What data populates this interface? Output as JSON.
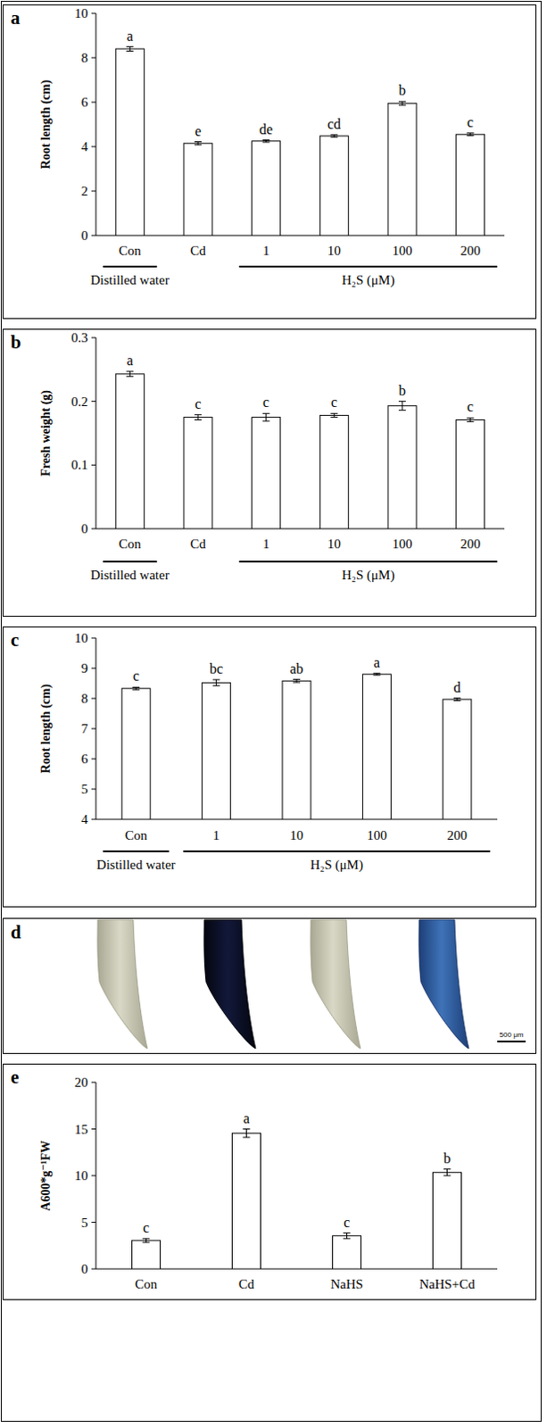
{
  "chart_data": [
    {
      "type": "bar",
      "label": "a",
      "y_label": "Root length (cm)",
      "categories": [
        "Con",
        "Cd",
        "1",
        "10",
        "100",
        "200"
      ],
      "values": [
        8.4,
        4.15,
        4.25,
        4.48,
        5.95,
        4.55
      ],
      "errors": [
        0.1,
        0.07,
        0.05,
        0.05,
        0.08,
        0.06
      ],
      "annotations": [
        "a",
        "e",
        "de",
        "cd",
        "b",
        "c"
      ],
      "groups": [
        {
          "label": "Distilled water",
          "categories": [
            "Con"
          ]
        },
        {
          "label": "H₂S (μM)",
          "categories": [
            "1",
            "10",
            "100",
            "200"
          ]
        }
      ],
      "color": "#ffffff",
      "ylim": [
        0,
        10
      ],
      "yticks": [
        0,
        2,
        4,
        6,
        8,
        10
      ],
      "grid": false
    },
    {
      "type": "bar",
      "label": "b",
      "y_label": "Fresh weight (g)",
      "categories": [
        "Con",
        "Cd",
        "1",
        "10",
        "100",
        "200"
      ],
      "values": [
        0.243,
        0.175,
        0.175,
        0.178,
        0.193,
        0.171
      ],
      "errors": [
        0.004,
        0.004,
        0.006,
        0.003,
        0.007,
        0.003
      ],
      "annotations": [
        "a",
        "c",
        "c",
        "c",
        "b",
        "c"
      ],
      "groups": [
        {
          "label": "Distilled water",
          "categories": [
            "Con"
          ]
        },
        {
          "label": "H₂S (μM)",
          "categories": [
            "1",
            "10",
            "100",
            "200"
          ]
        }
      ],
      "color": "#ffffff",
      "ylim": [
        0,
        0.3
      ],
      "yticks": [
        0,
        0.1,
        0.2,
        0.3
      ],
      "grid": false
    },
    {
      "type": "bar",
      "label": "c",
      "y_label": "Root length (cm)",
      "categories": [
        "Con",
        "1",
        "10",
        "100",
        "200"
      ],
      "values": [
        8.33,
        8.52,
        8.58,
        8.8,
        7.97
      ],
      "errors": [
        0.04,
        0.1,
        0.05,
        0.03,
        0.04
      ],
      "annotations": [
        "c",
        "bc",
        "ab",
        "a",
        "d"
      ],
      "groups": [
        {
          "label": "Distilled water",
          "categories": [
            "Con"
          ]
        },
        {
          "label": "H₂S (μM)",
          "categories": [
            "1",
            "10",
            "100",
            "200"
          ]
        }
      ],
      "color": "#ffffff",
      "ylim": [
        4,
        10
      ],
      "yticks": [
        4,
        5,
        6,
        7,
        8,
        9,
        10
      ],
      "grid": false
    },
    {
      "type": "bar",
      "label": "e",
      "y_label": "A600*g⁻¹FW",
      "categories": [
        "Con",
        "Cd",
        "NaHS",
        "NaHS+Cd"
      ],
      "values": [
        3.05,
        14.55,
        3.55,
        10.35
      ],
      "errors": [
        0.2,
        0.45,
        0.3,
        0.35
      ],
      "annotations": [
        "c",
        "a",
        "c",
        "b"
      ],
      "color": "#ffffff",
      "ylim": [
        0,
        20
      ],
      "yticks": [
        0,
        5,
        10,
        15,
        20
      ],
      "grid": false
    }
  ],
  "panel_d": {
    "label": "d",
    "scale_bar": "500 μm"
  }
}
